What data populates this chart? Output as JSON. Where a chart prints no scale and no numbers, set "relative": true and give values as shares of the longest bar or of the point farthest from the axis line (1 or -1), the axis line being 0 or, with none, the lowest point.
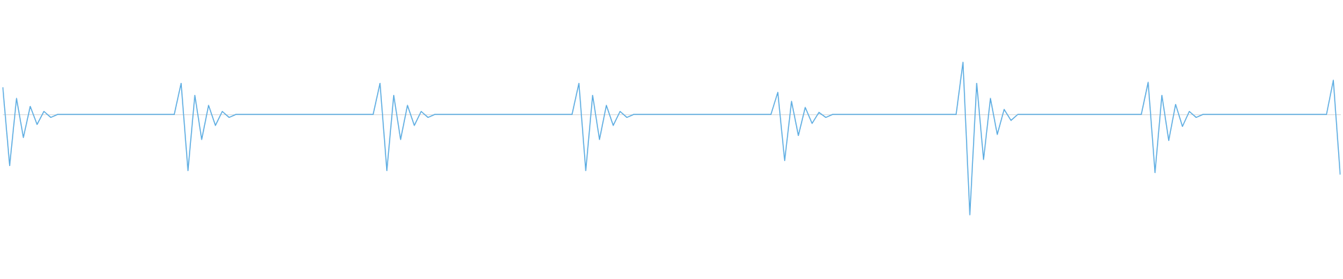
{
  "chart_data": {
    "type": "line",
    "relative": true,
    "legend": false,
    "grid": false,
    "categories": [
      null,
      null,
      null,
      null,
      null,
      null,
      null,
      null,
      null,
      null,
      null,
      null,
      null,
      null,
      null,
      null,
      null,
      null,
      null,
      null,
      null,
      null,
      null,
      null,
      null,
      null,
      null,
      null,
      null,
      null,
      null,
      null,
      null,
      null,
      null,
      null,
      null,
      null,
      null,
      null,
      null,
      null,
      null,
      null,
      null,
      null,
      null,
      null,
      null,
      null,
      null,
      null,
      null,
      null,
      null,
      null,
      null,
      null,
      null,
      null,
      null,
      null,
      null,
      null,
      null,
      null,
      null,
      null,
      null,
      null,
      null,
      null,
      null,
      null,
      null,
      null,
      null,
      null,
      null,
      null,
      null,
      null,
      null,
      null,
      null,
      null,
      null,
      null,
      null,
      null,
      null,
      null,
      null,
      null,
      null,
      null,
      null,
      null,
      null,
      null,
      null,
      null,
      null,
      null,
      null,
      null,
      null,
      null,
      null,
      null,
      null,
      null,
      null,
      null,
      null,
      null,
      null,
      null,
      null,
      null,
      null,
      null,
      null,
      null,
      null,
      null,
      null,
      null,
      null,
      null,
      null,
      null,
      null,
      null,
      null,
      null,
      null,
      null,
      null,
      null,
      null,
      null,
      null,
      null,
      null,
      null,
      null,
      null,
      null,
      null,
      null,
      null,
      null,
      null,
      null,
      null,
      null,
      null,
      null,
      null,
      null,
      null,
      null,
      null,
      null,
      null,
      null,
      null,
      null,
      null,
      null,
      null,
      null,
      null,
      null,
      null,
      null,
      null,
      null,
      null,
      null,
      null,
      null,
      null,
      null,
      null,
      null,
      null,
      null,
      null,
      null,
      null,
      null,
      null,
      null,
      null
    ],
    "series": [
      {
        "color": "#5dade2",
        "values": [
          0.27,
          -0.51,
          0.16,
          -0.23,
          0.08,
          -0.1,
          0.03,
          -0.03,
          0,
          0,
          0,
          0,
          0,
          0,
          0,
          0,
          0,
          0,
          0,
          0,
          0,
          0,
          0,
          0,
          0,
          0,
          0.31,
          -0.56,
          0.19,
          -0.25,
          0.09,
          -0.11,
          0.03,
          -0.03,
          0,
          0,
          0,
          0,
          0,
          0,
          0,
          0,
          0,
          0,
          0,
          0,
          0,
          0,
          0,
          0,
          0,
          0,
          0,
          0,
          0,
          0.31,
          -0.56,
          0.19,
          -0.25,
          0.09,
          -0.11,
          0.03,
          -0.03,
          0,
          0,
          0,
          0,
          0,
          0,
          0,
          0,
          0,
          0,
          0,
          0,
          0,
          0,
          0,
          0,
          0,
          0,
          0,
          0,
          0,
          0.31,
          -0.56,
          0.19,
          -0.25,
          0.09,
          -0.11,
          0.03,
          -0.03,
          0,
          0,
          0,
          0,
          0,
          0,
          0,
          0,
          0,
          0,
          0,
          0,
          0,
          0,
          0,
          0,
          0,
          0,
          0,
          0,
          0,
          0.22,
          -0.46,
          0.13,
          -0.21,
          0.07,
          -0.09,
          0.02,
          -0.03,
          0,
          0,
          0,
          0,
          0,
          0,
          0,
          0,
          0,
          0,
          0,
          0,
          0,
          0,
          0,
          0,
          0,
          0,
          0,
          0.52,
          -1,
          0.31,
          -0.45,
          0.16,
          -0.2,
          0.05,
          -0.06,
          0,
          0,
          0,
          0,
          0,
          0,
          0,
          0,
          0,
          0,
          0,
          0,
          0,
          0,
          0,
          0,
          0,
          0,
          0,
          0.32,
          -0.58,
          0.19,
          -0.26,
          0.1,
          -0.12,
          0.03,
          -0.03,
          0,
          0,
          0,
          0,
          0,
          0,
          0,
          0,
          0,
          0,
          0,
          0,
          0,
          0,
          0,
          0,
          0,
          0,
          0,
          0.34,
          -0.6
        ]
      }
    ]
  }
}
